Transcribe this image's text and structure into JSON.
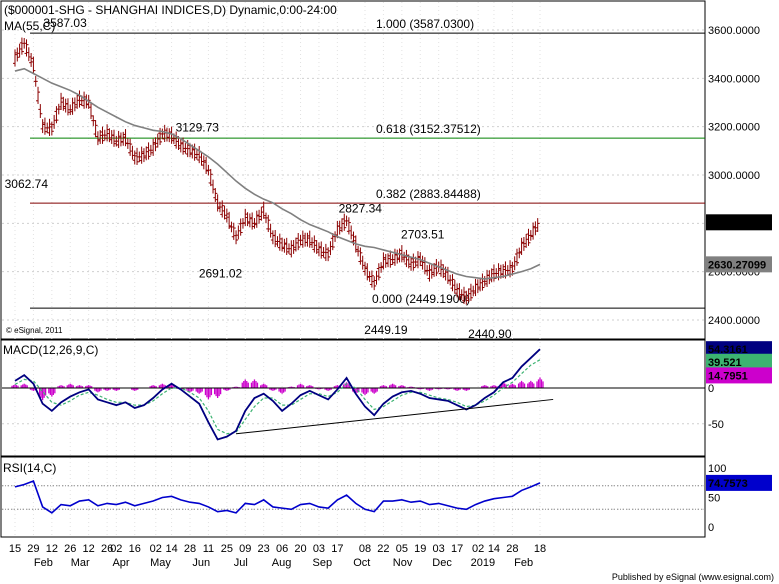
{
  "chart_data": [
    {
      "type": "candlestick",
      "title": "($000001-SHG - SHANGHAI INDICES,D) Dynamic,0:00-24:00",
      "watermark": "© eSignal, 2011",
      "ylim": [
        2330,
        3650
      ],
      "y_ticks": [
        "3600.0000",
        "3400.0000",
        "3200.0000",
        "3000.0000",
        "2800.0000",
        "2600.0000",
        "2400.0000"
      ],
      "y_tick_values": [
        3600,
        3400,
        3200,
        3000,
        2800,
        2600,
        2400
      ],
      "price_series": {
        "dates": [
          "2018-01-15",
          "2018-01-22",
          "2018-01-29",
          "2018-02-05",
          "2018-02-12",
          "2018-02-19",
          "2018-02-26",
          "2018-03-05",
          "2018-03-12",
          "2018-03-19",
          "2018-03-26",
          "2018-04-02",
          "2018-04-09",
          "2018-04-16",
          "2018-04-23",
          "2018-04-30",
          "2018-05-07",
          "2018-05-14",
          "2018-05-21",
          "2018-05-28",
          "2018-06-04",
          "2018-06-11",
          "2018-06-18",
          "2018-06-25",
          "2018-07-02",
          "2018-07-09",
          "2018-07-16",
          "2018-07-23",
          "2018-07-30",
          "2018-08-06",
          "2018-08-13",
          "2018-08-20",
          "2018-08-27",
          "2018-09-03",
          "2018-09-10",
          "2018-09-17",
          "2018-09-24",
          "2018-10-01",
          "2018-10-08",
          "2018-10-15",
          "2018-10-22",
          "2018-10-29",
          "2018-11-05",
          "2018-11-12",
          "2018-11-19",
          "2018-11-26",
          "2018-12-03",
          "2018-12-10",
          "2018-12-17",
          "2018-12-24",
          "2018-12-31",
          "2019-01-07",
          "2019-01-14",
          "2019-01-21",
          "2019-01-28",
          "2019-02-04",
          "2019-02-11",
          "2019-02-18"
        ],
        "close": [
          3480,
          3545,
          3450,
          3200,
          3190,
          3300,
          3270,
          3310,
          3300,
          3150,
          3170,
          3140,
          3150,
          3070,
          3080,
          3110,
          3170,
          3160,
          3120,
          3100,
          3080,
          3020,
          2880,
          2830,
          2740,
          2820,
          2800,
          2850,
          2740,
          2710,
          2690,
          2730,
          2730,
          2690,
          2670,
          2770,
          2810,
          2710,
          2610,
          2550,
          2640,
          2650,
          2670,
          2630,
          2650,
          2590,
          2620,
          2580,
          2520,
          2490,
          2530,
          2560,
          2590,
          2600,
          2610,
          2700,
          2750,
          2804.2263
        ]
      },
      "moving_average": {
        "label": "MA(55,C)",
        "last_value": "2630.27099",
        "values": [
          3430,
          3440,
          3420,
          3400,
          3380,
          3365,
          3350,
          3330,
          3305,
          3280,
          3260,
          3240,
          3220,
          3205,
          3195,
          3185,
          3180,
          3170,
          3150,
          3125,
          3100,
          3075,
          3045,
          3010,
          2975,
          2945,
          2920,
          2900,
          2885,
          2860,
          2840,
          2815,
          2795,
          2780,
          2765,
          2745,
          2730,
          2715,
          2705,
          2700,
          2690,
          2680,
          2670,
          2660,
          2650,
          2635,
          2620,
          2605,
          2590,
          2580,
          2575,
          2570,
          2575,
          2580,
          2590,
          2600,
          2612,
          2630.27
        ]
      },
      "last_price": "2804.2263",
      "fib_levels": [
        {
          "label": "1.000 (3587.0300)",
          "value": 3587.03,
          "color": "#000000"
        },
        {
          "label": "0.618 (3152.37512)",
          "value": 3152.38,
          "color": "#008000"
        },
        {
          "label": "0.382 (2883.84488)",
          "value": 2883.84,
          "color": "#800000"
        },
        {
          "label": "0.000 (2449.1900)",
          "value": 2449.19,
          "color": "#000000"
        }
      ],
      "annotations": [
        {
          "text": "3587.03",
          "date": "2018-01-29",
          "value": 3587.03
        },
        {
          "text": "3062.74",
          "date": "2018-02-05",
          "value": 3062.74
        },
        {
          "text": "3129.73",
          "date": "2018-05-14",
          "value": 3129.73
        },
        {
          "text": "2691.02",
          "date": "2018-06-25",
          "value": 2691.02
        },
        {
          "text": "2827.34",
          "date": "2018-09-24",
          "value": 2827.34
        },
        {
          "text": "2703.51",
          "date": "2018-11-12",
          "value": 2703.51
        },
        {
          "text": "2449.19",
          "date": "2018-10-15",
          "value": 2449.19
        },
        {
          "text": "2440.90",
          "date": "2019-01-02",
          "value": 2440.9
        }
      ]
    },
    {
      "type": "line",
      "title": "MACD(12,26,9,C)",
      "y_ticks": [
        "0",
        "-50"
      ],
      "y_tick_values": [
        0,
        -50
      ],
      "ylim": [
        -78,
        60
      ],
      "macd": [
        10,
        18,
        6,
        -22,
        -32,
        -20,
        -12,
        -6,
        -2,
        -16,
        -20,
        -24,
        -20,
        -28,
        -24,
        -14,
        -2,
        6,
        -2,
        -12,
        -22,
        -48,
        -72,
        -68,
        -60,
        -32,
        -14,
        -8,
        -18,
        -32,
        -22,
        -10,
        -4,
        -10,
        -16,
        -2,
        14,
        -8,
        -26,
        -38,
        -22,
        -12,
        -6,
        -4,
        -8,
        -14,
        -16,
        -18,
        -24,
        -30,
        -24,
        -14,
        -6,
        8,
        14,
        30,
        42,
        54.3161
      ],
      "signal": [
        5,
        12,
        10,
        -5,
        -20,
        -24,
        -18,
        -10,
        -6,
        -10,
        -16,
        -20,
        -20,
        -24,
        -24,
        -18,
        -8,
        0,
        0,
        -6,
        -14,
        -32,
        -58,
        -64,
        -62,
        -44,
        -26,
        -14,
        -14,
        -24,
        -24,
        -16,
        -8,
        -8,
        -12,
        -6,
        6,
        0,
        -16,
        -30,
        -26,
        -18,
        -10,
        -6,
        -6,
        -10,
        -14,
        -16,
        -20,
        -26,
        -24,
        -18,
        -10,
        0,
        8,
        20,
        32,
        39.521
      ],
      "histogram": [
        5,
        6,
        -4,
        -17,
        -12,
        4,
        6,
        4,
        4,
        -6,
        -4,
        -4,
        0,
        -4,
        0,
        4,
        6,
        6,
        -2,
        -6,
        -8,
        -16,
        -14,
        -4,
        2,
        12,
        12,
        6,
        -4,
        -8,
        2,
        6,
        4,
        -2,
        -4,
        4,
        8,
        -8,
        -10,
        -8,
        4,
        6,
        4,
        2,
        -2,
        -4,
        -2,
        -2,
        -4,
        -4,
        0,
        4,
        4,
        8,
        6,
        10,
        10,
        14.7951
      ],
      "trendline": [
        {
          "date": "2018-07-02",
          "value": -64
        },
        {
          "date": "2019-02-28",
          "value": -16
        }
      ],
      "values_shown": [
        "54.3161",
        "39.521",
        "14.7951"
      ]
    },
    {
      "type": "line",
      "title": "RSI(14,C)",
      "y_ticks": [
        "100",
        "50",
        "0"
      ],
      "y_tick_values": [
        100,
        50,
        0
      ],
      "ylim": [
        -15,
        118
      ],
      "levels": [
        30,
        70
      ],
      "values": [
        68,
        72,
        78,
        34,
        24,
        38,
        36,
        44,
        46,
        36,
        40,
        38,
        42,
        36,
        40,
        44,
        50,
        52,
        46,
        42,
        40,
        34,
        26,
        28,
        24,
        40,
        38,
        46,
        34,
        32,
        30,
        38,
        40,
        34,
        32,
        46,
        54,
        40,
        30,
        26,
        44,
        44,
        46,
        42,
        44,
        38,
        40,
        36,
        32,
        30,
        38,
        44,
        48,
        50,
        52,
        62,
        68,
        74.7573
      ],
      "last_value": "74.7573"
    }
  ],
  "x_axis": {
    "day_labels": [
      "15",
      "29",
      "12",
      "26",
      "12",
      "26",
      "02",
      "16",
      "02",
      "14",
      "28",
      "11",
      "25",
      "09",
      "23",
      "06",
      "20",
      "03",
      "17",
      "08",
      "22",
      "05",
      "19",
      "03",
      "17",
      "02",
      "14",
      "28",
      "18"
    ],
    "day_dates": [
      "2018-01-15",
      "2018-01-29",
      "2018-02-12",
      "2018-02-26",
      "2018-03-12",
      "2018-03-26",
      "2018-04-02",
      "2018-04-16",
      "2018-05-02",
      "2018-05-14",
      "2018-05-28",
      "2018-06-11",
      "2018-06-25",
      "2018-07-09",
      "2018-07-23",
      "2018-08-06",
      "2018-08-20",
      "2018-09-03",
      "2018-09-17",
      "2018-10-08",
      "2018-10-22",
      "2018-11-05",
      "2018-11-19",
      "2018-12-03",
      "2018-12-17",
      "2019-01-02",
      "2019-01-14",
      "2019-01-28",
      "2019-02-18"
    ],
    "month_labels": [
      "Feb",
      "Mar",
      "Apr",
      "May",
      "Jun",
      "Jul",
      "Aug",
      "Sep",
      "Oct",
      "Nov",
      "Dec",
      "2019",
      "Feb"
    ],
    "month_dates": [
      "2018-02-01",
      "2018-03-01",
      "2018-04-01",
      "2018-05-01",
      "2018-06-01",
      "2018-07-01",
      "2018-08-01",
      "2018-09-01",
      "2018-10-01",
      "2018-11-01",
      "2018-12-01",
      "2019-01-01",
      "2019-02-01"
    ]
  },
  "footer": "Published by eSignal (www.esignal.com)",
  "colors": {
    "candle": "#8b0000",
    "ma": "#808080",
    "macd": "#000080",
    "signal": "#3cb371",
    "histogram": "#cc00cc",
    "rsi": "#0000cc",
    "grid": "#cfcfcf",
    "price_box": "#000000",
    "ma_box": "#808080",
    "macd_box": "#000080",
    "signal_box": "#3cb371",
    "hist_box": "#cc00cc",
    "rsi_box": "#0000cc"
  }
}
